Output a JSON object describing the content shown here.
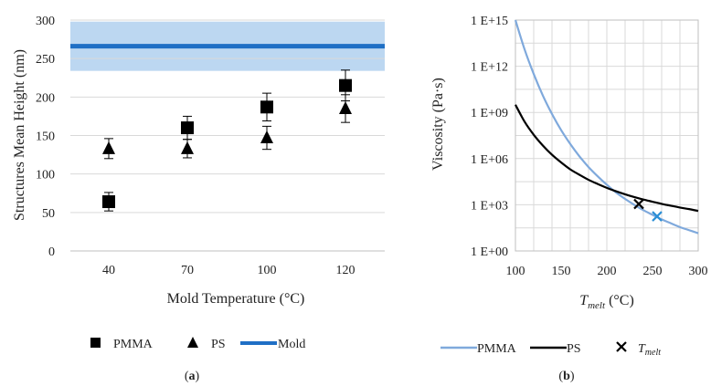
{
  "chart_data": [
    {
      "panel_label_open": "(",
      "panel_label_letter": "a",
      "panel_label_close": ")",
      "type": "scatter",
      "xlabel": "Mold Temperature (°C)",
      "ylabel": "Structures Mean Height (nm)",
      "categories": [
        "40",
        "70",
        "100",
        "120"
      ],
      "ylim": [
        0,
        300
      ],
      "yticks": [
        "0",
        "50",
        "100",
        "150",
        "200",
        "250",
        "300"
      ],
      "grid": "horizontal",
      "series": [
        {
          "name": "PMMA",
          "marker": "square",
          "color": "#000000",
          "values": [
            64,
            160,
            187,
            215
          ],
          "errors": [
            12,
            15,
            18,
            20
          ]
        },
        {
          "name": "PS",
          "marker": "triangle",
          "color": "#000000",
          "values": [
            133,
            133,
            147,
            185
          ],
          "errors": [
            13,
            12,
            15,
            18
          ]
        }
      ],
      "reference_line": {
        "name": "Mold",
        "value": 266,
        "band": [
          234,
          298
        ],
        "color": "#1f6fc5",
        "band_color": "#bcd7f1"
      },
      "legend_position": "bottom"
    },
    {
      "panel_label_open": "(",
      "panel_label_letter": "b",
      "panel_label_close": ")",
      "type": "line",
      "xlabel_main": "T",
      "xlabel_sub": "melt",
      "xlabel_unit": " (°C)",
      "ylabel": "Viscosity (Pa·s)",
      "xlim": [
        100,
        300
      ],
      "xticks": [
        "100",
        "150",
        "200",
        "250",
        "300"
      ],
      "ylog": true,
      "ylim_log10": [
        0,
        15
      ],
      "yticks": [
        "1 E+00",
        "1 E+03",
        "1 E+06",
        "1 E+09",
        "1 E+12",
        "1 E+15"
      ],
      "grid": "both",
      "series": [
        {
          "name": "PMMA",
          "color": "#7fa9dc",
          "x": [
            100,
            110,
            120,
            130,
            140,
            150,
            160,
            170,
            180,
            190,
            200,
            210,
            220,
            230,
            240,
            250,
            260,
            270,
            280,
            290,
            300
          ],
          "log10_y": [
            15.0,
            13.1,
            11.5,
            10.1,
            8.9,
            7.85,
            6.95,
            6.15,
            5.45,
            4.85,
            4.3,
            3.8,
            3.38,
            3.0,
            2.65,
            2.35,
            2.05,
            1.8,
            1.55,
            1.35,
            1.15
          ]
        },
        {
          "name": "PS",
          "color": "#000000",
          "x": [
            100,
            110,
            120,
            130,
            140,
            150,
            160,
            170,
            180,
            190,
            200,
            210,
            220,
            230,
            240,
            250,
            260,
            270,
            280,
            290,
            300
          ],
          "log10_y": [
            9.5,
            8.4,
            7.55,
            6.85,
            6.25,
            5.75,
            5.3,
            4.95,
            4.62,
            4.35,
            4.1,
            3.88,
            3.68,
            3.5,
            3.34,
            3.2,
            3.06,
            2.94,
            2.82,
            2.72,
            2.6
          ]
        }
      ],
      "markers": [
        {
          "name_main": "T",
          "name_sub": "melt",
          "x": 235,
          "log10_y": 3.05,
          "color": "#000000"
        },
        {
          "x": 255,
          "log10_y": 2.25,
          "color": "#2c8fd6"
        }
      ],
      "legend_position": "bottom"
    }
  ]
}
